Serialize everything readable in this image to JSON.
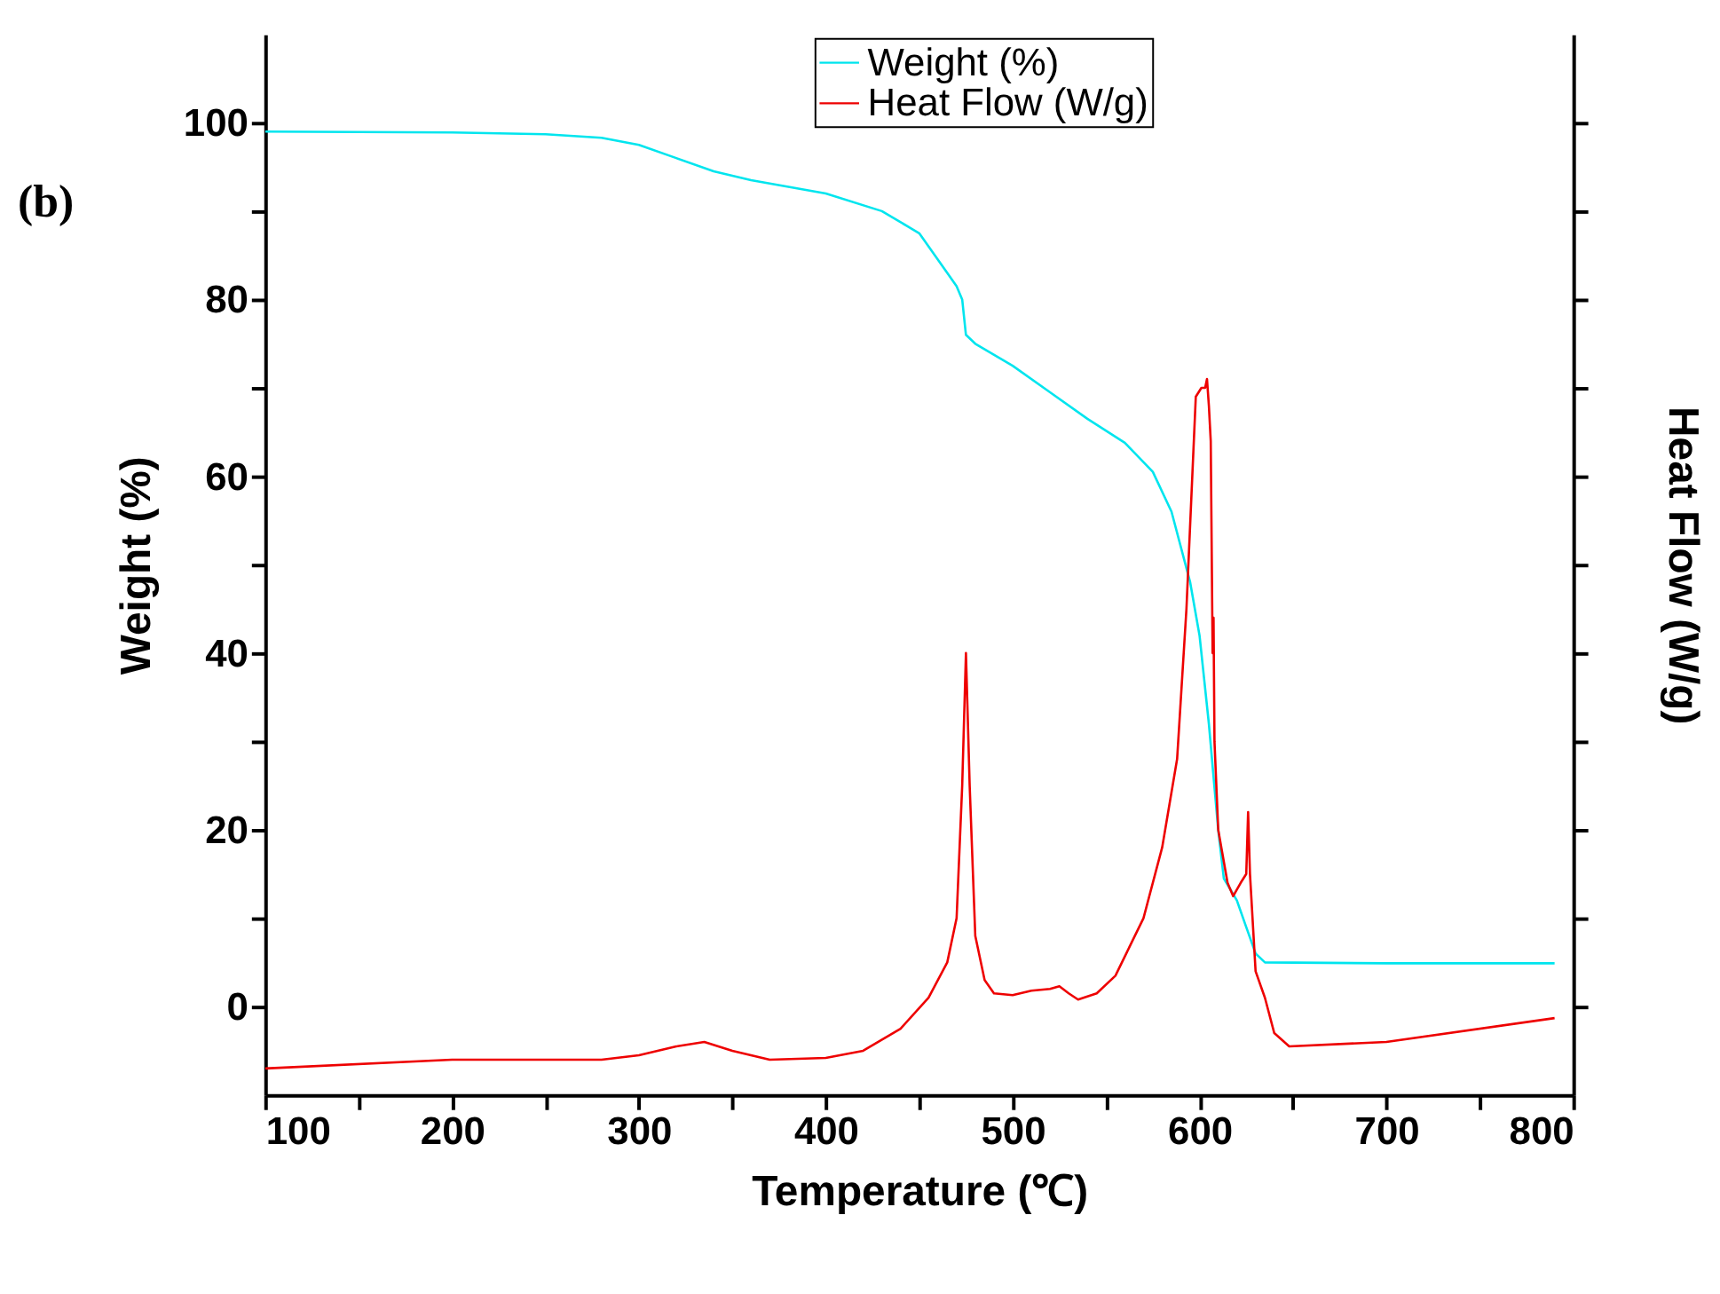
{
  "chart_data": {
    "type": "line",
    "xlabel": "Temperature (℃)",
    "ylabel": "Weight (%)",
    "y2label": "Heat Flow (W/g)",
    "annotations": [
      "(b)"
    ],
    "xlim": [
      100,
      800
    ],
    "ylim": [
      -10,
      110
    ],
    "xticks": [
      100,
      {
        "value": 150,
        "label": null
      },
      200,
      {
        "value": 250,
        "label": null
      },
      300,
      {
        "value": 350,
        "label": null
      },
      400,
      {
        "value": 450,
        "label": null
      },
      500,
      {
        "value": 550,
        "label": null
      },
      600,
      {
        "value": 650,
        "label": null
      },
      700,
      {
        "value": 750,
        "label": null
      },
      800
    ],
    "yticks": [
      0,
      {
        "value": 10,
        "label": null
      },
      20,
      {
        "value": 30,
        "label": null
      },
      40,
      {
        "value": 50,
        "label": null
      },
      60,
      {
        "value": 70,
        "label": null
      },
      80,
      {
        "value": 90,
        "label": null
      },
      100
    ],
    "grid": false,
    "legend": "top",
    "marker": "none",
    "line_style": "solid",
    "series": [
      {
        "name": "Weight (%)",
        "color": "#00e5ee",
        "x": [
          100,
          200,
          250,
          280,
          300,
          320,
          340,
          360,
          400,
          430,
          450,
          465,
          470,
          473,
          475,
          480,
          500,
          520,
          540,
          560,
          575,
          585,
          595,
          600,
          605,
          610,
          613,
          620,
          625,
          630,
          635,
          700,
          790
        ],
        "values": [
          99,
          98.9,
          98.7,
          98.3,
          97.5,
          96,
          94.5,
          93.5,
          92,
          90,
          87.5,
          83,
          81.5,
          80,
          76,
          75,
          72.5,
          69.5,
          66.5,
          63.8,
          60.5,
          56,
          48,
          42,
          32,
          20,
          14.5,
          12,
          9,
          6,
          5,
          4.9,
          4.9
        ]
      },
      {
        "name": "Heat Flow (W/g)",
        "color": "#ee0000",
        "x": [
          100,
          200,
          280,
          300,
          320,
          335,
          350,
          370,
          400,
          420,
          440,
          455,
          465,
          470,
          473,
          475,
          477,
          480,
          485,
          490,
          500,
          510,
          520,
          525,
          530,
          535,
          545,
          555,
          570,
          580,
          588,
          593,
          598,
          601,
          603,
          604,
          605,
          606,
          607,
          607.5,
          608,
          610,
          615,
          618,
          622,
          625,
          626,
          627,
          630,
          635,
          640,
          648,
          700,
          790
        ],
        "values": [
          -7,
          -6,
          -6,
          -5.5,
          -4.5,
          -4,
          -5,
          -6,
          -5.8,
          -5,
          -2.5,
          1,
          5,
          10,
          25,
          40,
          25,
          8,
          3,
          1.5,
          1.3,
          1.8,
          2,
          2.3,
          1.5,
          0.8,
          1.5,
          3.5,
          10,
          18,
          28,
          45,
          69,
          70,
          70,
          71,
          68,
          64,
          40,
          44,
          30,
          20,
          14,
          12.5,
          14,
          15,
          22,
          15,
          4,
          1,
          -3,
          -4.5,
          -4,
          -1.3
        ]
      }
    ]
  }
}
